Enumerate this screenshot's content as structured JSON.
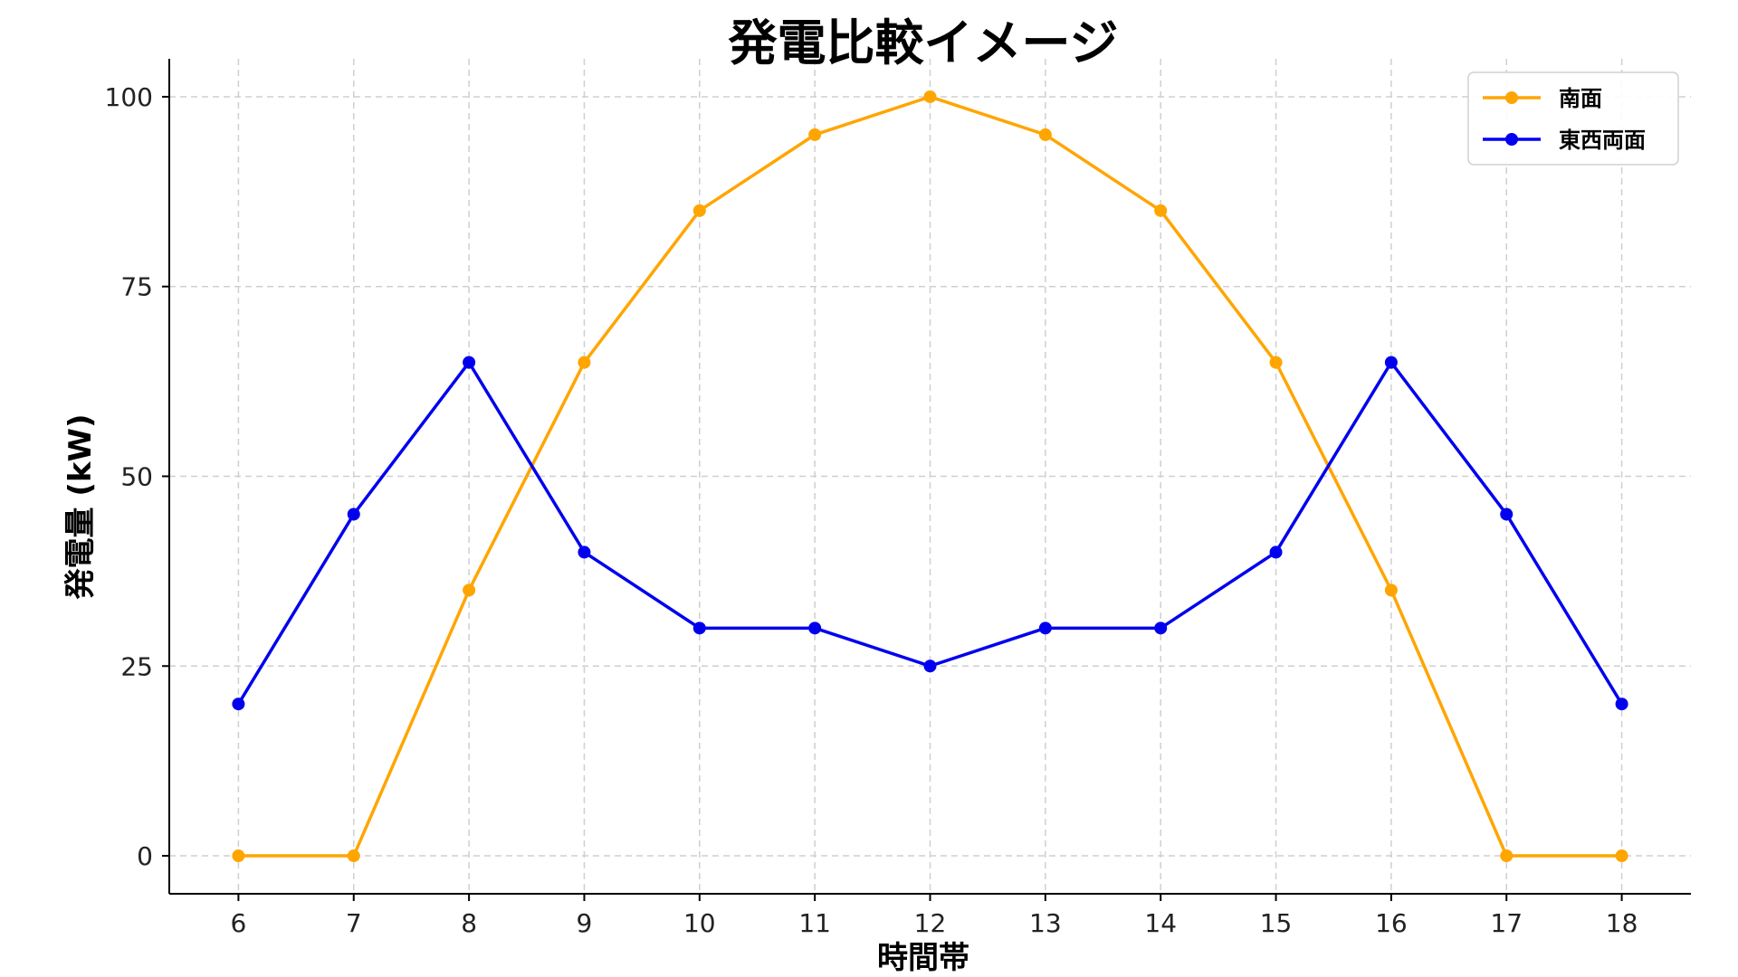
{
  "chart_data": {
    "type": "line",
    "title": "発電比較イメージ",
    "xlabel": "時間帯",
    "ylabel": "発電量 (kW)",
    "x": [
      6,
      7,
      8,
      9,
      10,
      11,
      12,
      13,
      14,
      15,
      16,
      17,
      18
    ],
    "xlim": [
      5.4,
      18.6
    ],
    "ylim": [
      -5,
      105
    ],
    "yticks": [
      0,
      25,
      50,
      75,
      100
    ],
    "grid": true,
    "legend_position": "top-right",
    "series": [
      {
        "name": "南面",
        "color": "#FFA500",
        "values": [
          0,
          0,
          35,
          65,
          85,
          95,
          100,
          95,
          85,
          65,
          35,
          0,
          0
        ]
      },
      {
        "name": "東西両面",
        "color": "#0000EE",
        "values": [
          20,
          45,
          65,
          40,
          30,
          30,
          25,
          30,
          30,
          40,
          65,
          45,
          20
        ]
      }
    ]
  }
}
